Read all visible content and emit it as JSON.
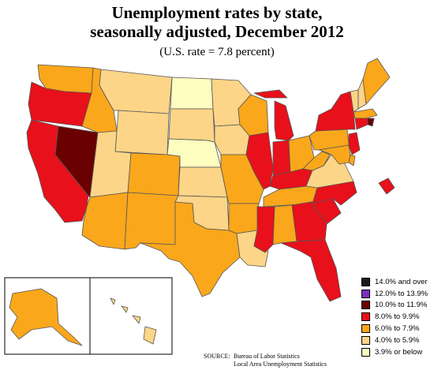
{
  "title_line1": "Unemployment rates by state,",
  "title_line2": "seasonally adjusted, December 2012",
  "subtitle": "(U.S. rate = 7.8 percent)",
  "legend": [
    {
      "label": "14.0% and over",
      "color": "#1a1a1a"
    },
    {
      "label": "12.0% to 13.9%",
      "color": "#7a2fbf"
    },
    {
      "label": "10.0% to 11.9%",
      "color": "#6a0000"
    },
    {
      "label": "8.0% to 9.9%",
      "color": "#e8101a"
    },
    {
      "label": "6.0% to 7.9%",
      "color": "#fba71b"
    },
    {
      "label": "4.0% to 5.9%",
      "color": "#fcd588"
    },
    {
      "label": "3.9% or below",
      "color": "#fefdc0"
    }
  ],
  "source_label": "SOURCE:",
  "source_line1": "Bureau of Labor Statistics",
  "source_line2": "Local Area Unemployment Statistics",
  "state_colors": {
    "WA": "#fba71b",
    "OR": "#e8101a",
    "CA": "#e8101a",
    "NV": "#6a0000",
    "ID": "#fba71b",
    "MT": "#fcd588",
    "WY": "#fcd588",
    "UT": "#fcd588",
    "AZ": "#fba71b",
    "CO": "#fba71b",
    "NM": "#fba71b",
    "ND": "#fefdc0",
    "SD": "#fcd588",
    "NE": "#fefdc0",
    "KS": "#fcd588",
    "OK": "#fcd588",
    "TX": "#fba71b",
    "MN": "#fcd588",
    "IA": "#fcd588",
    "MO": "#fba71b",
    "AR": "#fba71b",
    "LA": "#fcd588",
    "WI": "#fba71b",
    "IL": "#e8101a",
    "MI": "#e8101a",
    "IN": "#e8101a",
    "OH": "#fba71b",
    "KY": "#e8101a",
    "TN": "#fba71b",
    "MS": "#e8101a",
    "AL": "#fba71b",
    "GA": "#e8101a",
    "FL": "#e8101a",
    "SC": "#e8101a",
    "NC": "#e8101a",
    "VA": "#fcd588",
    "WV": "#fba71b",
    "PA": "#fba71b",
    "NY": "#e8101a",
    "VT": "#fcd588",
    "NH": "#fcd588",
    "ME": "#fba71b",
    "MA": "#fba71b",
    "RI": "#6a0000",
    "CT": "#e8101a",
    "NJ": "#e8101a",
    "DE": "#fba71b",
    "MD": "#fba71b",
    "DC": "#e8101a",
    "AK": "#fba71b",
    "HI": "#fcd588"
  }
}
